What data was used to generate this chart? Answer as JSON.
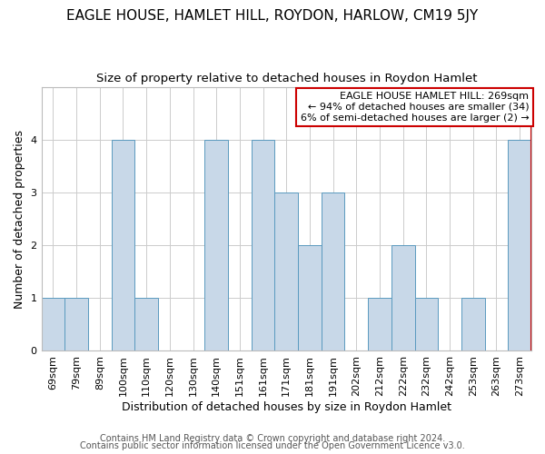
{
  "title": "EAGLE HOUSE, HAMLET HILL, ROYDON, HARLOW, CM19 5JY",
  "subtitle": "Size of property relative to detached houses in Roydon Hamlet",
  "xlabel": "Distribution of detached houses by size in Roydon Hamlet",
  "ylabel": "Number of detached properties",
  "footer1": "Contains HM Land Registry data © Crown copyright and database right 2024.",
  "footer2": "Contains public sector information licensed under the Open Government Licence v3.0.",
  "categories": [
    "69sqm",
    "79sqm",
    "89sqm",
    "100sqm",
    "110sqm",
    "120sqm",
    "130sqm",
    "140sqm",
    "151sqm",
    "161sqm",
    "171sqm",
    "181sqm",
    "191sqm",
    "202sqm",
    "212sqm",
    "222sqm",
    "232sqm",
    "242sqm",
    "253sqm",
    "263sqm",
    "273sqm"
  ],
  "values": [
    1,
    1,
    0,
    4,
    1,
    0,
    0,
    4,
    0,
    4,
    3,
    2,
    3,
    0,
    1,
    2,
    1,
    0,
    1,
    0,
    4
  ],
  "bar_color": "#c8d8e8",
  "bar_edge_color": "#5a9abf",
  "highlight_bar_index": 20,
  "highlight_line_color": "#cc0000",
  "annotation_box_text": "EAGLE HOUSE HAMLET HILL: 269sqm\n← 94% of detached houses are smaller (34)\n6% of semi-detached houses are larger (2) →",
  "annotation_box_edge_color": "#cc0000",
  "ylim": [
    0,
    5
  ],
  "yticks": [
    0,
    1,
    2,
    3,
    4
  ],
  "title_fontsize": 11,
  "subtitle_fontsize": 9.5,
  "axis_label_fontsize": 9,
  "tick_fontsize": 8,
  "annotation_fontsize": 8,
  "footer_fontsize": 7
}
